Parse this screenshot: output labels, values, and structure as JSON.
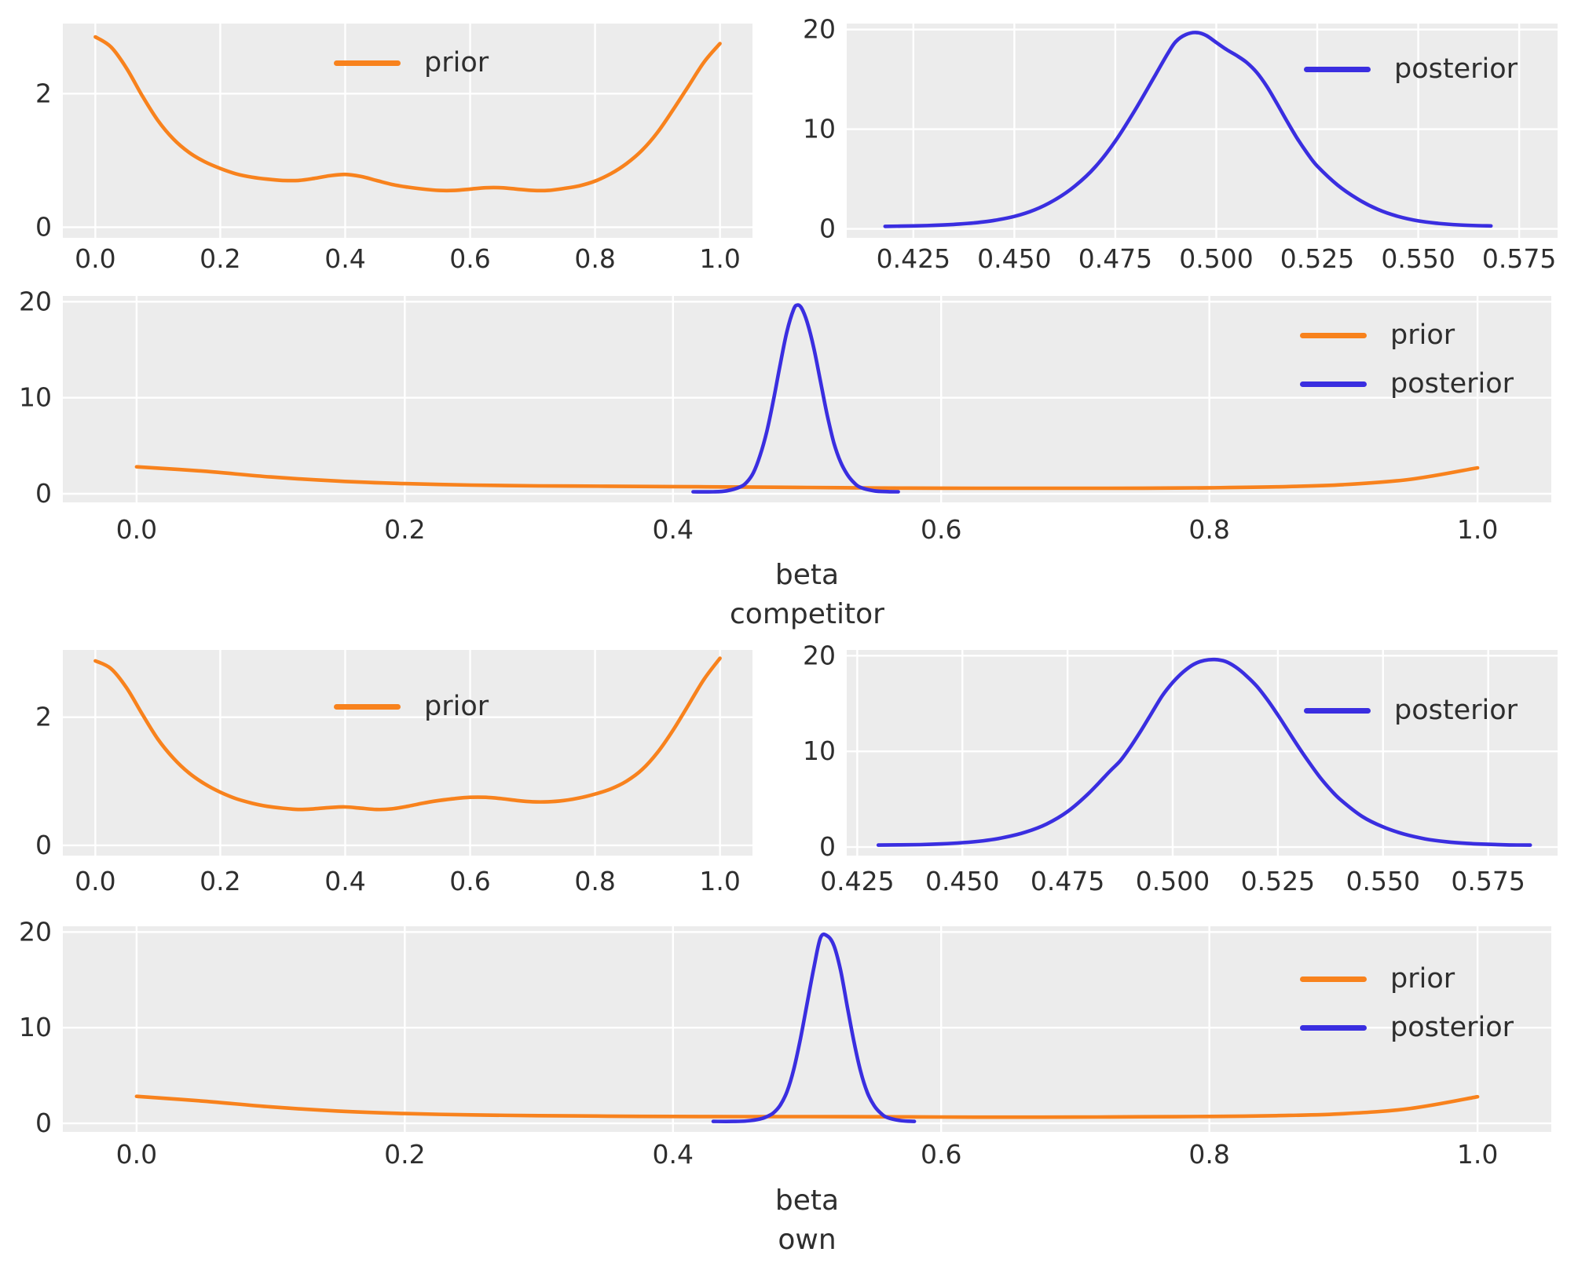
{
  "figure": {
    "background": "#ffffff",
    "panel_background": "#ececec",
    "grid_color": "#ffffff",
    "text_color": "#2e2e2e",
    "prior_color": "#f8821d",
    "posterior_color": "#3a2ee0"
  },
  "chart_data": [
    {
      "id": "competitor-prior",
      "type": "line",
      "xlabel_lines": [],
      "xlim": [
        -0.052,
        1.052
      ],
      "ylim": [
        -0.16,
        3.05
      ],
      "xtick_values": [
        0,
        0.2,
        0.4,
        0.6,
        0.8,
        1.0
      ],
      "xtick_labels": [
        "0.0",
        "0.2",
        "0.4",
        "0.6",
        "0.8",
        "1.0"
      ],
      "ytick_values": [
        0,
        2
      ],
      "ytick_labels": [
        "0",
        "2"
      ],
      "grid": true,
      "legend": {
        "position": "upper-center",
        "entries": [
          {
            "name": "prior",
            "color_key": "prior_color"
          }
        ]
      },
      "series": [
        {
          "name": "prior",
          "color_key": "prior_color",
          "x": [
            0,
            0.025,
            0.05,
            0.075,
            0.1,
            0.125,
            0.15,
            0.175,
            0.2,
            0.225,
            0.25,
            0.275,
            0.3,
            0.325,
            0.35,
            0.375,
            0.4,
            0.425,
            0.45,
            0.475,
            0.5,
            0.525,
            0.55,
            0.575,
            0.6,
            0.625,
            0.65,
            0.675,
            0.7,
            0.725,
            0.75,
            0.775,
            0.8,
            0.825,
            0.85,
            0.875,
            0.9,
            0.925,
            0.95,
            0.975,
            1.0
          ],
          "y": [
            2.85,
            2.7,
            2.38,
            1.97,
            1.6,
            1.32,
            1.12,
            0.98,
            0.88,
            0.8,
            0.75,
            0.72,
            0.7,
            0.7,
            0.73,
            0.77,
            0.79,
            0.76,
            0.7,
            0.64,
            0.6,
            0.57,
            0.55,
            0.55,
            0.57,
            0.59,
            0.59,
            0.57,
            0.55,
            0.55,
            0.58,
            0.62,
            0.69,
            0.8,
            0.95,
            1.15,
            1.42,
            1.76,
            2.12,
            2.48,
            2.75
          ]
        }
      ]
    },
    {
      "id": "competitor-posterior",
      "type": "line",
      "xlabel_lines": [],
      "xlim": [
        0.4085,
        0.5845
      ],
      "ylim": [
        -0.9,
        20.6
      ],
      "xtick_values": [
        0.425,
        0.45,
        0.475,
        0.5,
        0.525,
        0.55,
        0.575
      ],
      "xtick_labels": [
        "0.425",
        "0.450",
        "0.475",
        "0.500",
        "0.525",
        "0.550",
        "0.575"
      ],
      "ytick_values": [
        0,
        10,
        20
      ],
      "ytick_labels": [
        "0",
        "10",
        "20"
      ],
      "grid": true,
      "legend": {
        "position": "upper-right",
        "entries": [
          {
            "name": "posterior",
            "color_key": "posterior_color"
          }
        ]
      },
      "series": [
        {
          "name": "posterior",
          "color_key": "posterior_color",
          "x": [
            0.418,
            0.425,
            0.43,
            0.435,
            0.44,
            0.445,
            0.45,
            0.455,
            0.46,
            0.465,
            0.47,
            0.475,
            0.48,
            0.485,
            0.488,
            0.49,
            0.4925,
            0.495,
            0.4975,
            0.5,
            0.5025,
            0.505,
            0.5075,
            0.51,
            0.5125,
            0.515,
            0.5175,
            0.52,
            0.5225,
            0.525,
            0.53,
            0.535,
            0.54,
            0.545,
            0.55,
            0.555,
            0.56,
            0.565,
            0.568
          ],
          "y": [
            0.25,
            0.3,
            0.35,
            0.45,
            0.6,
            0.85,
            1.25,
            1.9,
            2.9,
            4.3,
            6.2,
            8.8,
            12.0,
            15.5,
            17.6,
            18.8,
            19.5,
            19.7,
            19.4,
            18.7,
            18.0,
            17.4,
            16.7,
            15.7,
            14.3,
            12.6,
            10.8,
            9.1,
            7.6,
            6.3,
            4.4,
            3.0,
            1.95,
            1.25,
            0.8,
            0.55,
            0.4,
            0.32,
            0.3
          ]
        }
      ]
    },
    {
      "id": "competitor-joint",
      "type": "line",
      "xlabel_lines": [
        "beta",
        "competitor"
      ],
      "xlim": [
        -0.055,
        1.055
      ],
      "ylim": [
        -0.9,
        20.6
      ],
      "xtick_values": [
        0,
        0.2,
        0.4,
        0.6,
        0.8,
        1.0
      ],
      "xtick_labels": [
        "0.0",
        "0.2",
        "0.4",
        "0.6",
        "0.8",
        "1.0"
      ],
      "ytick_values": [
        0,
        10,
        20
      ],
      "ytick_labels": [
        "0",
        "10",
        "20"
      ],
      "grid": true,
      "legend": {
        "position": "upper-right",
        "entries": [
          {
            "name": "prior",
            "color_key": "prior_color"
          },
          {
            "name": "posterior",
            "color_key": "posterior_color"
          }
        ]
      },
      "series": [
        {
          "name": "prior",
          "color_key": "prior_color",
          "x": [
            0,
            0.05,
            0.1,
            0.15,
            0.2,
            0.25,
            0.3,
            0.35,
            0.4,
            0.45,
            0.5,
            0.55,
            0.6,
            0.65,
            0.7,
            0.75,
            0.8,
            0.85,
            0.9,
            0.95,
            1.0
          ],
          "y": [
            2.8,
            2.35,
            1.75,
            1.32,
            1.05,
            0.9,
            0.82,
            0.78,
            0.74,
            0.7,
            0.65,
            0.6,
            0.58,
            0.57,
            0.57,
            0.58,
            0.62,
            0.72,
            0.95,
            1.5,
            2.7
          ]
        },
        {
          "name": "posterior",
          "color_key": "posterior_color",
          "x": [
            0.415,
            0.43,
            0.44,
            0.45,
            0.455,
            0.46,
            0.465,
            0.47,
            0.475,
            0.48,
            0.485,
            0.49,
            0.493,
            0.496,
            0.5,
            0.505,
            0.51,
            0.515,
            0.52,
            0.525,
            0.53,
            0.535,
            0.54,
            0.55,
            0.56,
            0.568
          ],
          "y": [
            0.2,
            0.2,
            0.3,
            0.7,
            1.2,
            2.2,
            4.0,
            6.5,
            9.8,
            13.5,
            16.9,
            19.2,
            19.65,
            19.3,
            17.9,
            15.2,
            11.7,
            8.2,
            5.3,
            3.3,
            2.0,
            1.15,
            0.65,
            0.3,
            0.22,
            0.2
          ]
        }
      ]
    },
    {
      "id": "own-prior",
      "type": "line",
      "xlabel_lines": [],
      "xlim": [
        -0.052,
        1.052
      ],
      "ylim": [
        -0.16,
        3.05
      ],
      "xtick_values": [
        0,
        0.2,
        0.4,
        0.6,
        0.8,
        1.0
      ],
      "xtick_labels": [
        "0.0",
        "0.2",
        "0.4",
        "0.6",
        "0.8",
        "1.0"
      ],
      "ytick_values": [
        0,
        2
      ],
      "ytick_labels": [
        "0",
        "2"
      ],
      "grid": true,
      "legend": {
        "position": "upper-center",
        "entries": [
          {
            "name": "prior",
            "color_key": "prior_color"
          }
        ]
      },
      "series": [
        {
          "name": "prior",
          "color_key": "prior_color",
          "x": [
            0,
            0.025,
            0.05,
            0.075,
            0.1,
            0.125,
            0.15,
            0.175,
            0.2,
            0.225,
            0.25,
            0.275,
            0.3,
            0.325,
            0.35,
            0.375,
            0.4,
            0.425,
            0.45,
            0.475,
            0.5,
            0.525,
            0.55,
            0.575,
            0.6,
            0.625,
            0.65,
            0.675,
            0.7,
            0.725,
            0.75,
            0.775,
            0.8,
            0.825,
            0.85,
            0.875,
            0.9,
            0.925,
            0.95,
            0.975,
            1.0
          ],
          "y": [
            2.88,
            2.76,
            2.46,
            2.05,
            1.66,
            1.36,
            1.13,
            0.96,
            0.83,
            0.73,
            0.66,
            0.61,
            0.58,
            0.56,
            0.57,
            0.59,
            0.6,
            0.58,
            0.56,
            0.57,
            0.61,
            0.66,
            0.7,
            0.73,
            0.75,
            0.75,
            0.73,
            0.7,
            0.68,
            0.68,
            0.7,
            0.74,
            0.8,
            0.88,
            1.0,
            1.18,
            1.45,
            1.8,
            2.2,
            2.6,
            2.92
          ]
        }
      ]
    },
    {
      "id": "own-posterior",
      "type": "line",
      "xlabel_lines": [],
      "xlim": [
        0.4225,
        0.5915
      ],
      "ylim": [
        -0.9,
        20.6
      ],
      "xtick_values": [
        0.425,
        0.45,
        0.475,
        0.5,
        0.525,
        0.55,
        0.575
      ],
      "xtick_labels": [
        "0.425",
        "0.450",
        "0.475",
        "0.500",
        "0.525",
        "0.550",
        "0.575"
      ],
      "ytick_values": [
        0,
        10,
        20
      ],
      "ytick_labels": [
        "0",
        "10",
        "20"
      ],
      "grid": true,
      "legend": {
        "position": "upper-right",
        "entries": [
          {
            "name": "posterior",
            "color_key": "posterior_color"
          }
        ]
      },
      "series": [
        {
          "name": "posterior",
          "color_key": "posterior_color",
          "x": [
            0.43,
            0.44,
            0.445,
            0.45,
            0.455,
            0.46,
            0.465,
            0.47,
            0.475,
            0.48,
            0.485,
            0.4875,
            0.49,
            0.4925,
            0.495,
            0.4975,
            0.5,
            0.5025,
            0.505,
            0.5075,
            0.51,
            0.5125,
            0.515,
            0.5175,
            0.52,
            0.5225,
            0.525,
            0.5275,
            0.53,
            0.5325,
            0.535,
            0.5375,
            0.54,
            0.545,
            0.55,
            0.555,
            0.56,
            0.565,
            0.57,
            0.575,
            0.58,
            0.585
          ],
          "y": [
            0.2,
            0.25,
            0.32,
            0.45,
            0.65,
            1.0,
            1.55,
            2.4,
            3.7,
            5.6,
            7.9,
            9.0,
            10.5,
            12.2,
            14.0,
            15.8,
            17.2,
            18.3,
            19.1,
            19.5,
            19.6,
            19.4,
            18.8,
            17.9,
            16.8,
            15.4,
            13.8,
            12.1,
            10.4,
            8.8,
            7.3,
            6.0,
            4.9,
            3.2,
            2.1,
            1.35,
            0.85,
            0.55,
            0.38,
            0.28,
            0.22,
            0.2
          ]
        }
      ]
    },
    {
      "id": "own-joint",
      "type": "line",
      "xlabel_lines": [
        "beta",
        "own"
      ],
      "xlim": [
        -0.055,
        1.055
      ],
      "ylim": [
        -0.9,
        20.6
      ],
      "xtick_values": [
        0,
        0.2,
        0.4,
        0.6,
        0.8,
        1.0
      ],
      "xtick_labels": [
        "0.0",
        "0.2",
        "0.4",
        "0.6",
        "0.8",
        "1.0"
      ],
      "ytick_values": [
        0,
        10,
        20
      ],
      "ytick_labels": [
        "0",
        "10",
        "20"
      ],
      "grid": true,
      "legend": {
        "position": "upper-right",
        "entries": [
          {
            "name": "prior",
            "color_key": "prior_color"
          },
          {
            "name": "posterior",
            "color_key": "posterior_color"
          }
        ]
      },
      "series": [
        {
          "name": "prior",
          "color_key": "prior_color",
          "x": [
            0,
            0.05,
            0.1,
            0.15,
            0.2,
            0.25,
            0.3,
            0.35,
            0.4,
            0.45,
            0.5,
            0.55,
            0.6,
            0.65,
            0.7,
            0.75,
            0.8,
            0.85,
            0.9,
            0.95,
            1.0
          ],
          "y": [
            2.82,
            2.32,
            1.72,
            1.28,
            1.02,
            0.88,
            0.8,
            0.75,
            0.72,
            0.7,
            0.7,
            0.68,
            0.66,
            0.64,
            0.65,
            0.68,
            0.72,
            0.8,
            1.0,
            1.55,
            2.78
          ]
        },
        {
          "name": "posterior",
          "color_key": "posterior_color",
          "x": [
            0.43,
            0.445,
            0.455,
            0.465,
            0.47,
            0.475,
            0.48,
            0.485,
            0.49,
            0.495,
            0.5,
            0.505,
            0.51,
            0.515,
            0.52,
            0.525,
            0.53,
            0.535,
            0.54,
            0.545,
            0.55,
            0.555,
            0.56,
            0.57,
            0.58
          ],
          "y": [
            0.2,
            0.2,
            0.25,
            0.45,
            0.7,
            1.1,
            1.9,
            3.3,
            5.6,
            8.8,
            12.5,
            16.2,
            19.4,
            19.6,
            18.6,
            16.0,
            12.2,
            8.5,
            5.4,
            3.2,
            1.85,
            1.05,
            0.6,
            0.28,
            0.2
          ]
        }
      ]
    }
  ]
}
